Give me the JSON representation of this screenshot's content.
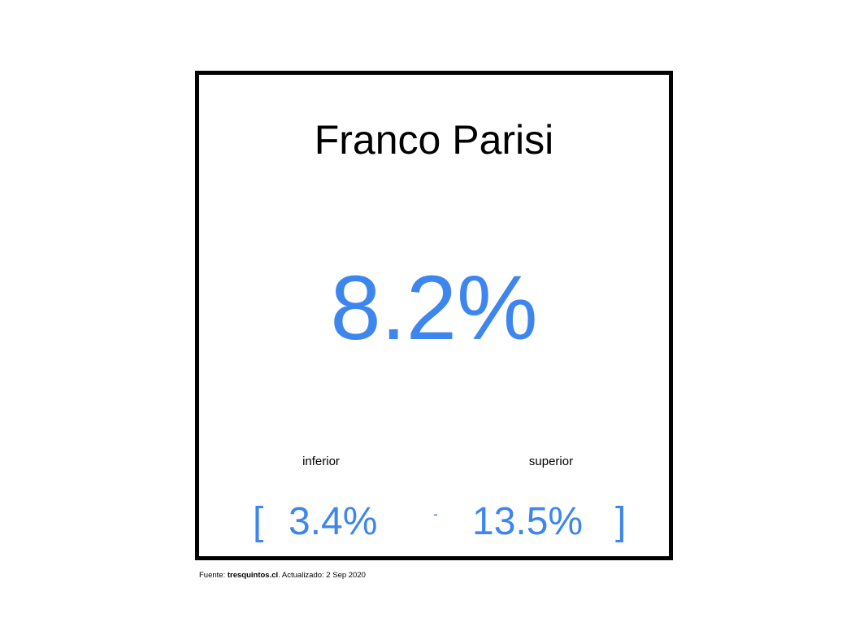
{
  "card": {
    "candidate_name": "Franco Parisi",
    "estimate": "8.2%",
    "lower_label": "inferior",
    "upper_label": "superior",
    "bracket_open": "[",
    "lower_value": "3.4%",
    "separator": "-",
    "upper_value": "13.5%",
    "bracket_close": "]"
  },
  "footer": {
    "source_prefix": "Fuente: ",
    "source_site": "tresquintos.cl",
    "updated_text": ". Actualizado: 2 Sep 2020"
  },
  "colors": {
    "accent": "#3d86ee",
    "border": "#000000",
    "text": "#000000"
  }
}
